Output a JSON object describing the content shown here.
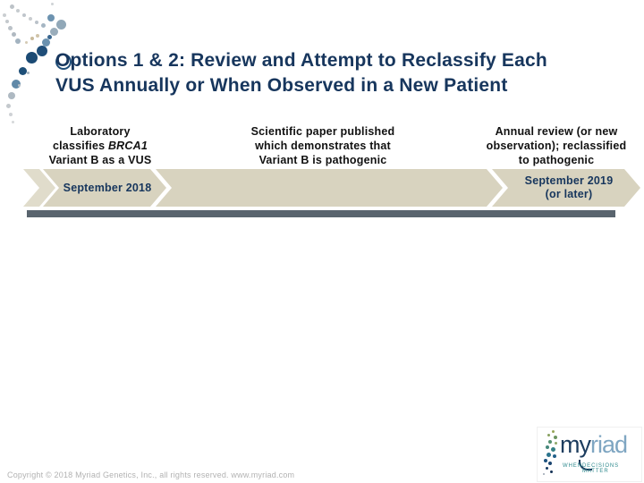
{
  "slide": {
    "title_line1": "Options 1 & 2: Review and Attempt to Reclassify Each",
    "title_line2": "VUS Annually or When Observed in a New Patient",
    "title_color": "#17365d"
  },
  "columns": [
    {
      "line1": "Laboratory",
      "line2_pre": "classifies ",
      "line2_em": "BRCA1",
      "line3": "Variant B as a VUS"
    },
    {
      "line1": "Scientific paper published",
      "line2": "which demonstrates that",
      "line3": "Variant B is pathogenic"
    },
    {
      "line1": "Annual review (or new",
      "line2": "observation); reclassified",
      "line3": "to pathogenic"
    }
  ],
  "timeline": {
    "start_label": "September 2018",
    "end_label_line1": "September 2019",
    "end_label_line2": "(or later)",
    "band_color": "#d8d3bf",
    "bar_color": "#59646e",
    "label_color": "#17365d"
  },
  "footer": {
    "copyright": "Copyright © 2018 Myriad Genetics, Inc., all rights reserved. www.myriad.com"
  },
  "logo": {
    "brand_dark": "my",
    "brand_light": "riad",
    "tagline_word1": "WHEN",
    "tagline_word2": "DECISIONS MATTER",
    "brand_dark_color": "#1c3c5e",
    "brand_light_color": "#7fa6c2",
    "tagline_color": "#2f8a8e"
  }
}
